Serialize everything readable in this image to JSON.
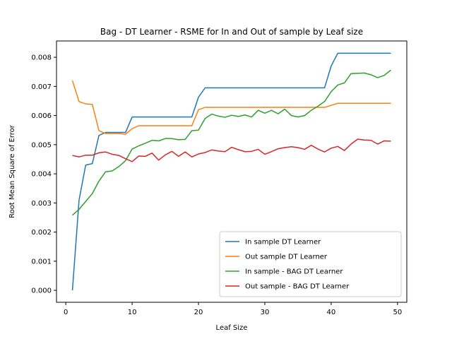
{
  "chart_data": {
    "type": "line",
    "title": "Bag - DT Learner - RSME for In and Out of sample by Leaf size",
    "xlabel": "Leaf Size",
    "ylabel": "Root Mean Square of Error",
    "xlim": [
      -1.4,
      51.4
    ],
    "ylim": [
      -0.00041,
      0.00856
    ],
    "xticks": [
      0,
      10,
      20,
      30,
      40,
      50
    ],
    "yticks": [
      0.0,
      0.001,
      0.002,
      0.003,
      0.004,
      0.005,
      0.006,
      0.007,
      0.008
    ],
    "ytick_labels": [
      "0.000",
      "0.001",
      "0.002",
      "0.003",
      "0.004",
      "0.005",
      "0.006",
      "0.007",
      "0.008"
    ],
    "legend_position": "lower right",
    "x": [
      1,
      2,
      3,
      4,
      5,
      6,
      7,
      8,
      9,
      10,
      11,
      12,
      13,
      14,
      15,
      16,
      17,
      18,
      19,
      20,
      21,
      22,
      23,
      24,
      25,
      26,
      27,
      28,
      29,
      30,
      31,
      32,
      33,
      34,
      35,
      36,
      37,
      38,
      39,
      40,
      41,
      42,
      43,
      44,
      45,
      46,
      47,
      48,
      49
    ],
    "series": [
      {
        "name": "In sample DT Learner",
        "color": "#1f77b4",
        "values": [
          0.0,
          0.0031,
          0.0043,
          0.00435,
          0.00532,
          0.00542,
          0.00542,
          0.00542,
          0.00542,
          0.00595,
          0.00595,
          0.00595,
          0.00595,
          0.00595,
          0.00595,
          0.00595,
          0.00595,
          0.00595,
          0.00595,
          0.00663,
          0.00695,
          0.00695,
          0.00695,
          0.00695,
          0.00695,
          0.00695,
          0.00695,
          0.00695,
          0.00695,
          0.00695,
          0.00695,
          0.00695,
          0.00695,
          0.00695,
          0.00695,
          0.00695,
          0.00695,
          0.00695,
          0.00695,
          0.0077,
          0.00814,
          0.00814,
          0.00814,
          0.00814,
          0.00814,
          0.00814,
          0.00814,
          0.00814,
          0.00814
        ]
      },
      {
        "name": "Out sample DT Learner",
        "color": "#ff7f0e",
        "values": [
          0.0072,
          0.00648,
          0.0064,
          0.00638,
          0.00548,
          0.00538,
          0.00538,
          0.00538,
          0.00536,
          0.00555,
          0.00565,
          0.00565,
          0.00565,
          0.00565,
          0.00565,
          0.00565,
          0.00565,
          0.00565,
          0.00565,
          0.0062,
          0.00628,
          0.00628,
          0.00628,
          0.00628,
          0.00628,
          0.00628,
          0.00628,
          0.00628,
          0.00628,
          0.00628,
          0.00628,
          0.00628,
          0.00628,
          0.00628,
          0.00628,
          0.00628,
          0.00628,
          0.00628,
          0.00628,
          0.00635,
          0.00642,
          0.00642,
          0.00642,
          0.00642,
          0.00642,
          0.00642,
          0.00642,
          0.00642,
          0.00642
        ]
      },
      {
        "name": "In sample - BAG DT Learner",
        "color": "#2ca02c",
        "values": [
          0.00258,
          0.00278,
          0.00305,
          0.00332,
          0.00375,
          0.00407,
          0.0041,
          0.00425,
          0.00445,
          0.00485,
          0.00496,
          0.00505,
          0.00515,
          0.00513,
          0.00521,
          0.00521,
          0.00517,
          0.00518,
          0.00548,
          0.0055,
          0.0059,
          0.00605,
          0.00598,
          0.00594,
          0.00601,
          0.00597,
          0.00602,
          0.00595,
          0.00618,
          0.00608,
          0.00618,
          0.00606,
          0.00622,
          0.006,
          0.00595,
          0.006,
          0.00618,
          0.00632,
          0.00648,
          0.00682,
          0.00705,
          0.00712,
          0.00744,
          0.00745,
          0.00746,
          0.0074,
          0.0073,
          0.00738,
          0.00756
        ]
      },
      {
        "name": "Out sample - BAG DT Learner",
        "color": "#d62728",
        "values": [
          0.00463,
          0.00458,
          0.00464,
          0.00464,
          0.00472,
          0.00475,
          0.00467,
          0.00463,
          0.00452,
          0.00442,
          0.00461,
          0.0046,
          0.00471,
          0.00447,
          0.00465,
          0.00477,
          0.0046,
          0.00475,
          0.00458,
          0.00468,
          0.00473,
          0.00482,
          0.00478,
          0.00476,
          0.00491,
          0.00483,
          0.00476,
          0.00477,
          0.00484,
          0.00467,
          0.00476,
          0.00486,
          0.0049,
          0.00493,
          0.0049,
          0.00484,
          0.00498,
          0.00485,
          0.00475,
          0.00488,
          0.00494,
          0.0048,
          0.00502,
          0.00519,
          0.00516,
          0.00515,
          0.00502,
          0.00513,
          0.00512
        ]
      }
    ]
  }
}
